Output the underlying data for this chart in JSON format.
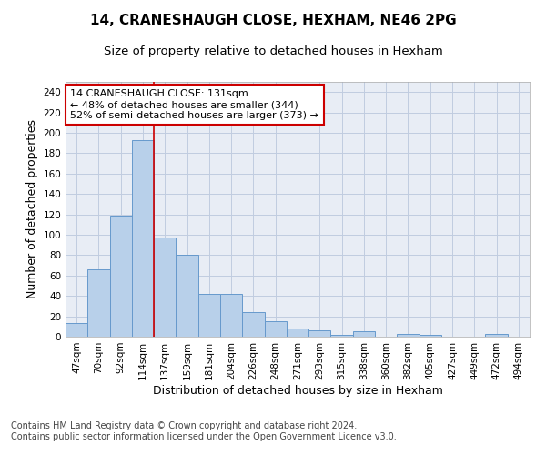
{
  "title": "14, CRANESHAUGH CLOSE, HEXHAM, NE46 2PG",
  "subtitle": "Size of property relative to detached houses in Hexham",
  "xlabel": "Distribution of detached houses by size in Hexham",
  "ylabel": "Number of detached properties",
  "categories": [
    "47sqm",
    "70sqm",
    "92sqm",
    "114sqm",
    "137sqm",
    "159sqm",
    "181sqm",
    "204sqm",
    "226sqm",
    "248sqm",
    "271sqm",
    "293sqm",
    "315sqm",
    "338sqm",
    "360sqm",
    "382sqm",
    "405sqm",
    "427sqm",
    "449sqm",
    "472sqm",
    "494sqm"
  ],
  "values": [
    13,
    66,
    119,
    193,
    97,
    80,
    42,
    42,
    24,
    15,
    8,
    6,
    2,
    5,
    0,
    3,
    2,
    0,
    0,
    3,
    0
  ],
  "bar_color": "#b8d0ea",
  "bar_edge_color": "#6699cc",
  "vline_x_index": 3.5,
  "vline_color": "#cc0000",
  "annotation_text": "14 CRANESHAUGH CLOSE: 131sqm\n← 48% of detached houses are smaller (344)\n52% of semi-detached houses are larger (373) →",
  "annotation_box_color": "#ffffff",
  "annotation_box_edge": "#cc0000",
  "ylim": [
    0,
    250
  ],
  "yticks": [
    0,
    20,
    40,
    60,
    80,
    100,
    120,
    140,
    160,
    180,
    200,
    220,
    240
  ],
  "background_color": "#ffffff",
  "plot_bg_color": "#e8edf5",
  "grid_color": "#c0cce0",
  "footer_line1": "Contains HM Land Registry data © Crown copyright and database right 2024.",
  "footer_line2": "Contains public sector information licensed under the Open Government Licence v3.0.",
  "title_fontsize": 11,
  "subtitle_fontsize": 9.5,
  "axis_label_fontsize": 9,
  "tick_fontsize": 7.5,
  "annotation_fontsize": 8,
  "footer_fontsize": 7
}
